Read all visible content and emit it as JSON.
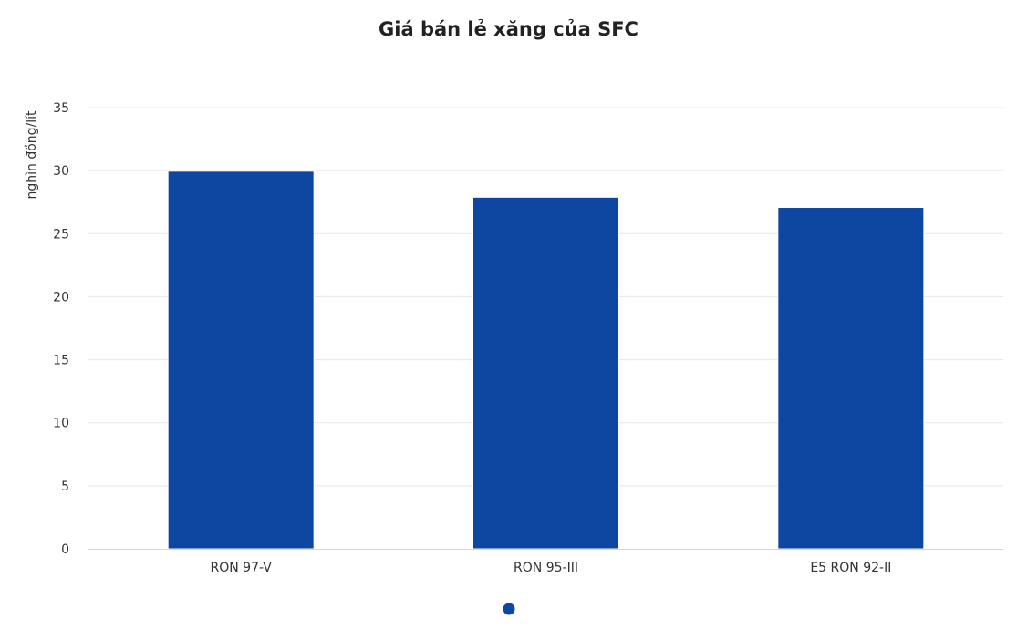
{
  "chart_data": {
    "type": "bar",
    "title": "Giá bán lẻ xăng của SFC",
    "ylabel": "nghìn đồng/lít",
    "xlabel": "",
    "categories": [
      "RON 97-V",
      "RON 95-III",
      "E5 RON 92-II"
    ],
    "series": [
      {
        "values": [
          29.95,
          27.89,
          27.08
        ]
      }
    ],
    "ylim": [
      0,
      35
    ],
    "yticks": [
      0,
      5,
      10,
      15,
      20,
      25,
      30,
      35
    ],
    "grid": true,
    "legend": "bottom-center",
    "colors": {
      "bar": "#0e47a1",
      "grid": "#e6e6e6",
      "axis": "#ccd6eb"
    }
  }
}
